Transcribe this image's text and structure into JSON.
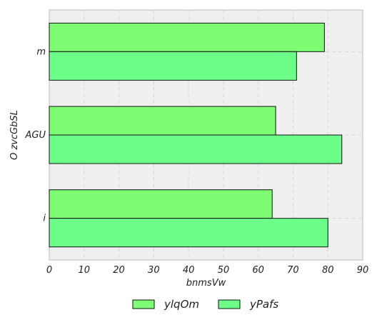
{
  "chart_data": {
    "type": "bar",
    "orientation": "horizontal",
    "categories": [
      "i",
      "AGU",
      "m"
    ],
    "series": [
      {
        "name": "ylqOm",
        "values": [
          64,
          65,
          79
        ],
        "color": "#7dfc74"
      },
      {
        "name": "yPafs",
        "values": [
          80,
          84,
          71
        ],
        "color": "#6dfe8a"
      }
    ],
    "xlabel": "bnmsVw",
    "ylabel": "O zvcGbSL",
    "xlim": [
      0,
      90
    ],
    "xticks": [
      0,
      10,
      20,
      30,
      40,
      50,
      60,
      70,
      80,
      90
    ],
    "grid": true,
    "legend_position": "bottom",
    "plot_background": "#efefef"
  }
}
